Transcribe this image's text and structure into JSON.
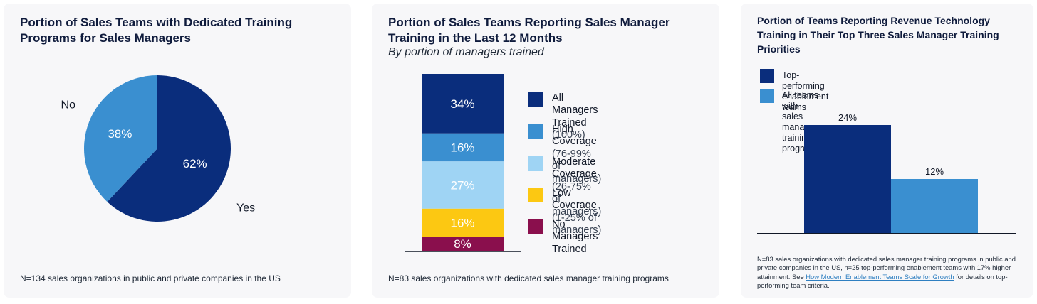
{
  "chart_data": [
    {
      "type": "pie",
      "title": "Portion of Sales Teams with Dedicated Training Programs for Sales Managers",
      "slices": [
        {
          "name": "Yes",
          "value": 62,
          "label": "62%",
          "color": "#0a2d7c"
        },
        {
          "name": "No",
          "value": 38,
          "label": "38%",
          "color": "#3a8fd0"
        }
      ],
      "note": "N=134 sales organizations in public and private companies in the US"
    },
    {
      "type": "bar",
      "stacked": true,
      "title": "Portion of Sales Teams Reporting Sales Manager Training in the Last 12 Months",
      "subtitle": "By portion of managers trained",
      "series": [
        {
          "name": "All Managers Trained",
          "detail": "(100%)",
          "value": 34,
          "label": "34%",
          "color": "#0a2d7c",
          "text_color": "#ffffff"
        },
        {
          "name": "High Coverage",
          "detail": "(76-99% of managers)",
          "value": 16,
          "label": "16%",
          "color": "#3a8fd0",
          "text_color": "#ffffff"
        },
        {
          "name": "Moderate Coverage",
          "detail": "(26-75% of managers)",
          "value": 27,
          "label": "27%",
          "color": "#9fd4f4",
          "text_color": "#ffffff"
        },
        {
          "name": "Low Coverage",
          "detail": "(1-25% of managers)",
          "value": 16,
          "label": "16%",
          "color": "#fcc812",
          "text_color": "#ffffff"
        },
        {
          "name": "No Managers Trained",
          "detail": "",
          "value": 8,
          "label": "8%",
          "color": "#8a0f4d",
          "text_color": "#ffffff"
        }
      ],
      "legend": "right",
      "note": "N=83 sales organizations with dedicated sales manager training programs"
    },
    {
      "type": "bar",
      "title": "Portion of Teams Reporting Revenue Technology Training in Their Top Three Sales Manager Training Priorities",
      "series": [
        {
          "name": "Top-performing enablement teams",
          "value": 24,
          "label": "24%",
          "color": "#0a2d7c"
        },
        {
          "name": "All teams with sales manager training programs",
          "value": 12,
          "label": "12%",
          "color": "#3a8fd0"
        }
      ],
      "ylim": [
        0,
        24
      ],
      "legend": "top-left",
      "note_text": "N=83 sales organizations with dedicated sales manager training programs in public and private companies in the US, n=25 top-performing enablement teams with 17% higher attainment. See ",
      "note_link": "How Modern Enablement Teams Scale for Growth",
      "note_tail": " for details on top-performing team criteria."
    }
  ]
}
